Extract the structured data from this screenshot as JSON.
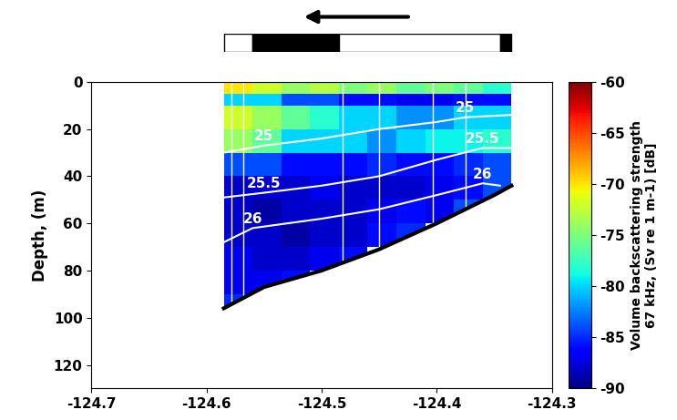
{
  "chart_data": {
    "type": "heatmap",
    "ylabel": "Depth, (m)",
    "xlim": [
      -124.7,
      -124.3
    ],
    "xticks": [
      -124.7,
      -124.6,
      -124.5,
      -124.4,
      -124.3
    ],
    "ylim": [
      130,
      0
    ],
    "yticks": [
      0,
      20,
      40,
      60,
      80,
      100,
      120
    ],
    "x_edges": [
      -124.585,
      -124.56,
      -124.535,
      -124.51,
      -124.485,
      -124.46,
      -124.435,
      -124.41,
      -124.385,
      -124.36,
      -124.335
    ],
    "depth_edges": [
      0,
      5,
      10,
      20,
      30,
      40,
      50,
      60,
      70,
      80,
      90,
      100
    ],
    "cells": [
      [
        -70,
        -72,
        -74,
        -73,
        -75,
        -74,
        -76,
        -75,
        -76,
        -78
      ],
      [
        -80,
        -80,
        -84,
        -84,
        -86,
        -86,
        -87,
        -87,
        -86,
        -86
      ],
      [
        -72,
        -74,
        -76,
        -78,
        -80,
        -80,
        -82,
        -82,
        -80,
        -80
      ],
      [
        -74,
        -76,
        -80,
        -80,
        -80,
        -82,
        -80,
        -79,
        -79,
        -78
      ],
      [
        -84,
        -84,
        -86,
        -86,
        -86,
        -85,
        -86,
        -86,
        -85,
        -84
      ],
      [
        -88,
        -88,
        -88,
        -87,
        -88,
        -88,
        -88,
        -87,
        -86,
        -84
      ],
      [
        -88,
        -89,
        -88,
        -88,
        -88,
        -87,
        -86,
        -87,
        -84,
        null
      ],
      [
        -88,
        -88,
        -89,
        -88,
        -88,
        -86,
        -85,
        null,
        null,
        null
      ],
      [
        -87,
        -88,
        -88,
        -87,
        -86,
        null,
        null,
        null,
        null,
        null
      ],
      [
        -87,
        -87,
        -86,
        null,
        null,
        null,
        null,
        null,
        null,
        null
      ],
      [
        -85,
        null,
        null,
        null,
        null,
        null,
        null,
        null,
        null,
        null
      ]
    ],
    "colorbar": {
      "label": "Volume backscattering strength\n67 kHz, (Sv re 1 m-1) [dB]",
      "range": [
        -90,
        -60
      ],
      "ticks": [
        -90,
        -85,
        -80,
        -75,
        -70,
        -65,
        -60
      ]
    },
    "contours": [
      {
        "level": 25,
        "x": [
          -124.585,
          -124.55,
          -124.5,
          -124.45,
          -124.4,
          -124.375,
          -124.335
        ],
        "depth": [
          30,
          27,
          24,
          20,
          17,
          15,
          14
        ]
      },
      {
        "level": 25.5,
        "x": [
          -124.585,
          -124.55,
          -124.5,
          -124.45,
          -124.4,
          -124.36,
          -124.335
        ],
        "depth": [
          49,
          47,
          44,
          40,
          33,
          28,
          28
        ]
      },
      {
        "level": 26,
        "x": [
          -124.585,
          -124.56,
          -124.5,
          -124.45,
          -124.4,
          -124.36,
          -124.345
        ],
        "depth": [
          68,
          62,
          58,
          54,
          48,
          43,
          44
        ]
      }
    ],
    "seafloor": {
      "x": [
        -124.585,
        -124.55,
        -124.5,
        -124.45,
        -124.4,
        -124.35,
        -124.335
      ],
      "depth": [
        96,
        87,
        80,
        71,
        60,
        48,
        44
      ]
    },
    "vertical_lines": [
      -124.578,
      -124.568,
      -124.482,
      -124.45,
      -124.403,
      -124.375
    ],
    "day_night": [
      {
        "start": -124.585,
        "end": -124.56,
        "color": "white"
      },
      {
        "start": -124.56,
        "end": -124.485,
        "color": "black"
      },
      {
        "start": -124.485,
        "end": -124.345,
        "color": "white"
      },
      {
        "start": -124.345,
        "end": -124.335,
        "color": "black"
      }
    ]
  }
}
